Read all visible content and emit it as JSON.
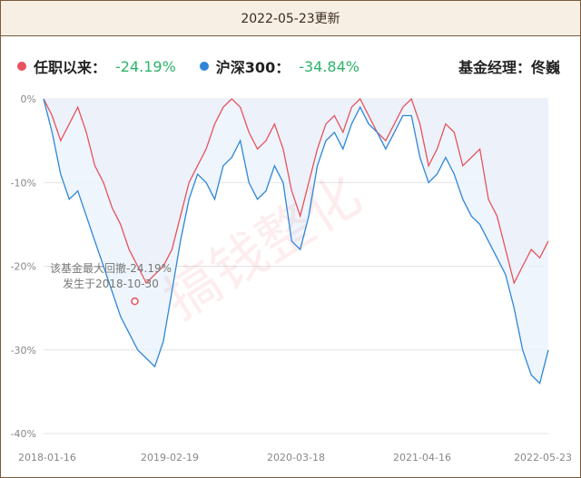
{
  "header": {
    "update_text": "2022-05-23更新"
  },
  "legend": {
    "tenure_label": "任职以来：",
    "tenure_value": "-24.19%",
    "index_label": "沪深300：",
    "index_value": "-34.84%",
    "manager_label": "基金经理：佟巍"
  },
  "watermark": "搞钱整化",
  "annotation": {
    "line1": "该基金最大回撤-24.19%",
    "line2": "发生于2018-10-30"
  },
  "colors": {
    "fund": "#e8525b",
    "index": "#2f86d8",
    "gain_text": "#2bb36a"
  },
  "chart_data": {
    "type": "line",
    "x_tick_labels": [
      "2018-01-16",
      "2019-02-19",
      "2020-03-18",
      "2021-04-16",
      "2022-05-23"
    ],
    "y_tick_labels": [
      "0%",
      "-10%",
      "-20%",
      "-30%",
      "-40%"
    ],
    "ylim": [
      -40,
      0
    ],
    "grid": true,
    "legend_position": "top-left",
    "series": [
      {
        "name": "任职以来",
        "values": [
          0,
          -2,
          -5,
          -3,
          -1,
          -4,
          -8,
          -10,
          -13,
          -15,
          -18,
          -20,
          -22,
          -21,
          -20,
          -18,
          -14,
          -10,
          -8,
          -6,
          -3,
          -1,
          0,
          -1,
          -4,
          -6,
          -5,
          -3,
          -6,
          -11,
          -14,
          -10,
          -6,
          -3,
          -2,
          -4,
          -1,
          0,
          -2,
          -4,
          -5,
          -3,
          -1,
          0,
          -3,
          -8,
          -6,
          -3,
          -4,
          -8,
          -7,
          -6,
          -12,
          -14,
          -18,
          -22,
          -20,
          -18,
          -19,
          -17
        ]
      },
      {
        "name": "沪深300",
        "values": [
          0,
          -4,
          -9,
          -12,
          -11,
          -14,
          -17,
          -20,
          -23,
          -26,
          -28,
          -30,
          -31,
          -32,
          -29,
          -23,
          -17,
          -12,
          -9,
          -10,
          -12,
          -8,
          -7,
          -5,
          -10,
          -12,
          -11,
          -8,
          -10,
          -17,
          -18,
          -14,
          -8,
          -5,
          -4,
          -6,
          -3,
          -1,
          -3,
          -4,
          -6,
          -4,
          -2,
          -2,
          -7,
          -10,
          -9,
          -7,
          -9,
          -12,
          -14,
          -15,
          -17,
          -19,
          -21,
          -25,
          -30,
          -33,
          -34,
          -30
        ]
      }
    ],
    "max_drawdown_marker": {
      "date": "2018-10-30",
      "value": -24.19
    }
  }
}
